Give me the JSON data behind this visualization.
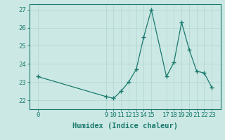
{
  "x": [
    0,
    9,
    10,
    11,
    12,
    13,
    14,
    15,
    17,
    18,
    19,
    20,
    21,
    22,
    23
  ],
  "y": [
    23.3,
    22.2,
    22.1,
    22.5,
    23.0,
    23.7,
    25.5,
    27.0,
    23.3,
    24.1,
    26.3,
    24.8,
    23.6,
    23.5,
    22.7
  ],
  "ylim": [
    21.5,
    27.3
  ],
  "yticks": [
    22,
    23,
    24,
    25,
    26,
    27
  ],
  "xticks": [
    0,
    9,
    10,
    11,
    12,
    13,
    14,
    15,
    17,
    18,
    19,
    20,
    21,
    22,
    23
  ],
  "xlabel": "Humidex (Indice chaleur)",
  "line_color": "#1a7a6e",
  "marker": "+",
  "bg_color": "#cce8e4",
  "grid_color": "#b0d4d0",
  "label_color": "#1a7a6e",
  "tick_color": "#1a7a6e",
  "spine_color": "#1a7a6e",
  "tick_fontsize": 6.5,
  "xlabel_fontsize": 7.5
}
